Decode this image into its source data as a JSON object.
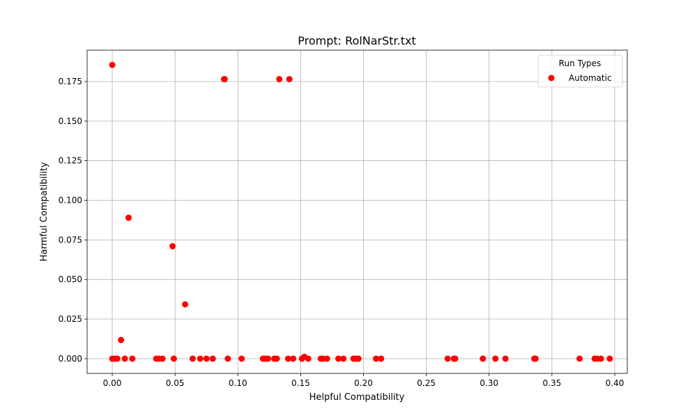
{
  "chart_data": {
    "type": "scatter",
    "title": "Prompt: RolNarStr.txt",
    "xlabel": "Helpful Compatibility",
    "ylabel": "Harmful Compatibility",
    "xlim": [
      -0.02,
      0.41
    ],
    "ylim": [
      -0.0093,
      0.1948
    ],
    "xticks": [
      "0.00",
      "0.05",
      "0.10",
      "0.15",
      "0.20",
      "0.25",
      "0.30",
      "0.35",
      "0.40"
    ],
    "yticks": [
      "0.000",
      "0.025",
      "0.050",
      "0.075",
      "0.100",
      "0.125",
      "0.150",
      "0.175"
    ],
    "grid": true,
    "legend": {
      "title": "Run Types",
      "position": "top-right"
    },
    "series": [
      {
        "name": "Automatic",
        "color": "#ff0000",
        "points": [
          [
            0.0,
            0.1855
          ],
          [
            0.089,
            0.1765
          ],
          [
            0.0895,
            0.1765
          ],
          [
            0.133,
            0.1765
          ],
          [
            0.141,
            0.1765
          ],
          [
            0.013,
            0.089
          ],
          [
            0.048,
            0.071
          ],
          [
            0.058,
            0.0343
          ],
          [
            0.007,
            0.0118
          ],
          [
            0.0,
            0.0
          ],
          [
            0.002,
            0.0
          ],
          [
            0.004,
            0.0
          ],
          [
            0.01,
            0.0
          ],
          [
            0.016,
            0.0
          ],
          [
            0.035,
            0.0
          ],
          [
            0.037,
            0.0
          ],
          [
            0.04,
            0.0
          ],
          [
            0.049,
            0.0
          ],
          [
            0.064,
            0.0
          ],
          [
            0.07,
            0.0
          ],
          [
            0.075,
            0.0
          ],
          [
            0.08,
            0.0
          ],
          [
            0.092,
            0.0
          ],
          [
            0.103,
            0.0
          ],
          [
            0.12,
            0.0
          ],
          [
            0.122,
            0.0
          ],
          [
            0.124,
            0.0
          ],
          [
            0.129,
            0.0
          ],
          [
            0.131,
            0.0
          ],
          [
            0.14,
            0.0
          ],
          [
            0.144,
            0.0
          ],
          [
            0.151,
            0.0
          ],
          [
            0.153,
            0.0012
          ],
          [
            0.156,
            0.0
          ],
          [
            0.166,
            0.0
          ],
          [
            0.168,
            0.0
          ],
          [
            0.171,
            0.0
          ],
          [
            0.18,
            0.0
          ],
          [
            0.184,
            0.0
          ],
          [
            0.192,
            0.0
          ],
          [
            0.194,
            0.0
          ],
          [
            0.196,
            0.0
          ],
          [
            0.21,
            0.0
          ],
          [
            0.214,
            0.0
          ],
          [
            0.267,
            0.0
          ],
          [
            0.272,
            0.0
          ],
          [
            0.273,
            0.0
          ],
          [
            0.295,
            0.0
          ],
          [
            0.305,
            0.0
          ],
          [
            0.313,
            0.0
          ],
          [
            0.336,
            0.0
          ],
          [
            0.337,
            0.0
          ],
          [
            0.372,
            0.0
          ],
          [
            0.384,
            0.0
          ],
          [
            0.386,
            0.0
          ],
          [
            0.389,
            0.0
          ],
          [
            0.396,
            0.0
          ]
        ]
      }
    ]
  }
}
